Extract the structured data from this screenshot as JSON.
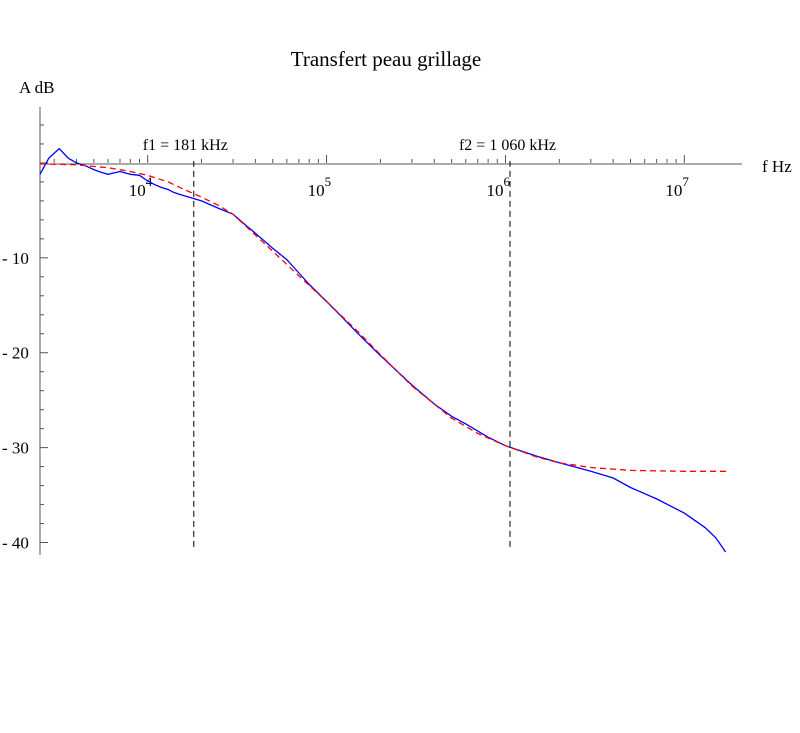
{
  "chart_data": {
    "type": "line",
    "title": "Transfert peau grillage",
    "xlabel": "f Hz",
    "ylabel": "A dB",
    "x_scale": "log",
    "xlim": [
      2500,
      18000000
    ],
    "ylim": [
      -41,
      6
    ],
    "x_ticks": [
      {
        "value": 10000,
        "base": "10",
        "exp": "4"
      },
      {
        "value": 100000,
        "base": "10",
        "exp": "5"
      },
      {
        "value": 1000000,
        "base": "10",
        "exp": "6"
      },
      {
        "value": 10000000,
        "base": "10",
        "exp": "7"
      }
    ],
    "y_ticks": [
      {
        "value": -10,
        "label": "- 10"
      },
      {
        "value": -20,
        "label": "- 20"
      },
      {
        "value": -30,
        "label": "- 30"
      },
      {
        "value": -40,
        "label": "- 40"
      }
    ],
    "annotations": [
      {
        "text": "f1 = 181 kHz",
        "x": 18100
      },
      {
        "text": "f2 = 1 060 kHz",
        "x": 1060000
      }
    ],
    "grid": false,
    "series": [
      {
        "style": "solid",
        "color": "#0000ff",
        "points": [
          [
            2500,
            -1.2
          ],
          [
            2800,
            0.5
          ],
          [
            3200,
            1.5
          ],
          [
            3600,
            0.5
          ],
          [
            4000,
            0.0
          ],
          [
            4500,
            -0.3
          ],
          [
            5000,
            -0.7
          ],
          [
            5500,
            -1.0
          ],
          [
            6000,
            -1.2
          ],
          [
            7000,
            -0.9
          ],
          [
            8000,
            -1.2
          ],
          [
            9000,
            -1.3
          ],
          [
            10000,
            -1.9
          ],
          [
            11000,
            -2.3
          ],
          [
            12000,
            -2.6
          ],
          [
            13000,
            -2.8
          ],
          [
            14000,
            -3.1
          ],
          [
            15000,
            -3.3
          ],
          [
            17000,
            -3.6
          ],
          [
            20000,
            -4.0
          ],
          [
            25000,
            -4.8
          ],
          [
            30000,
            -5.4
          ],
          [
            35000,
            -6.5
          ],
          [
            40000,
            -7.4
          ],
          [
            50000,
            -9.0
          ],
          [
            60000,
            -10.2
          ],
          [
            70000,
            -11.6
          ],
          [
            80000,
            -12.8
          ],
          [
            100000,
            -14.6
          ],
          [
            120000,
            -16.1
          ],
          [
            150000,
            -18.0
          ],
          [
            200000,
            -20.3
          ],
          [
            300000,
            -23.4
          ],
          [
            400000,
            -25.4
          ],
          [
            500000,
            -26.7
          ],
          [
            600000,
            -27.5
          ],
          [
            800000,
            -28.9
          ],
          [
            1000000,
            -29.8
          ],
          [
            1200000,
            -30.3
          ],
          [
            1500000,
            -30.9
          ],
          [
            2000000,
            -31.6
          ],
          [
            3000000,
            -32.5
          ],
          [
            4000000,
            -33.2
          ],
          [
            5000000,
            -34.2
          ],
          [
            7000000,
            -35.4
          ],
          [
            10000000,
            -36.9
          ],
          [
            13000000,
            -38.4
          ],
          [
            15000000,
            -39.5
          ],
          [
            17000000,
            -41.0
          ]
        ]
      },
      {
        "style": "dashed",
        "color": "#ff0000",
        "points": [
          [
            2500,
            -0.1
          ],
          [
            4000,
            -0.2
          ],
          [
            6000,
            -0.5
          ],
          [
            8000,
            -0.9
          ],
          [
            10000,
            -1.3
          ],
          [
            13000,
            -2.0
          ],
          [
            16000,
            -2.8
          ],
          [
            20000,
            -3.6
          ],
          [
            25000,
            -4.5
          ],
          [
            30000,
            -5.4
          ],
          [
            40000,
            -7.6
          ],
          [
            50000,
            -9.3
          ],
          [
            70000,
            -11.9
          ],
          [
            100000,
            -14.6
          ],
          [
            150000,
            -17.8
          ],
          [
            200000,
            -20.2
          ],
          [
            300000,
            -23.5
          ],
          [
            500000,
            -26.9
          ],
          [
            700000,
            -28.5
          ],
          [
            1000000,
            -29.8
          ],
          [
            1500000,
            -31.0
          ],
          [
            2000000,
            -31.6
          ],
          [
            3000000,
            -32.1
          ],
          [
            5000000,
            -32.4
          ],
          [
            10000000,
            -32.5
          ],
          [
            18000000,
            -32.5
          ]
        ]
      }
    ]
  }
}
